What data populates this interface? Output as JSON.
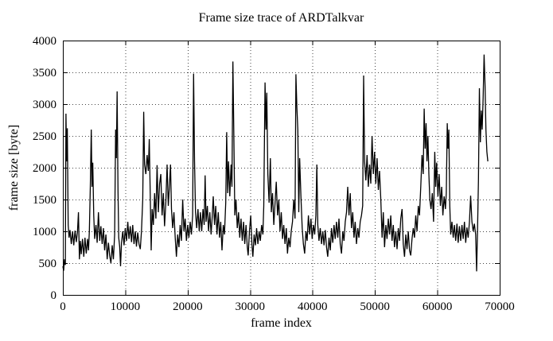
{
  "chart_data": {
    "type": "line",
    "title": "Frame size trace of ARDTalkvar",
    "xlabel": "frame index",
    "ylabel": "frame size [byte]",
    "xlim": [
      0,
      70000
    ],
    "ylim": [
      0,
      4000
    ],
    "xticks": [
      0,
      10000,
      20000,
      30000,
      40000,
      50000,
      60000,
      70000
    ],
    "yticks": [
      0,
      500,
      1000,
      1500,
      2000,
      2500,
      3000,
      3500,
      4000
    ],
    "grid": true,
    "grid_style": "dotted",
    "legend": "none",
    "line_color": "#000000",
    "background": "#ffffff",
    "series": [
      {
        "name": "frame size",
        "points_format": "interleaved [frame_index, frame_size_bytes]",
        "points_xy": [
          0,
          450,
          130,
          380,
          260,
          560,
          390,
          470,
          500,
          2850,
          600,
          2100,
          720,
          2620,
          850,
          1100,
          1000,
          900,
          1150,
          1020,
          1350,
          800,
          1550,
          1000,
          1750,
          780,
          1950,
          1010,
          2150,
          830,
          2350,
          1000,
          2500,
          1300,
          2650,
          560,
          2800,
          850,
          2950,
          640,
          3150,
          880,
          3350,
          600,
          3550,
          900,
          3750,
          650,
          3950,
          880,
          4100,
          700,
          4250,
          1000,
          4400,
          1700,
          4550,
          2600,
          4670,
          1700,
          4800,
          2080,
          4950,
          1250,
          5100,
          880,
          5300,
          1100,
          5500,
          820,
          5700,
          1300,
          5900,
          850,
          6100,
          1080,
          6300,
          800,
          6500,
          1050,
          6700,
          700,
          6900,
          950,
          7100,
          560,
          7300,
          820,
          7500,
          620,
          7700,
          500,
          7900,
          780,
          8100,
          560,
          8300,
          950,
          8450,
          2600,
          8570,
          2150,
          8700,
          3200,
          8830,
          1650,
          8950,
          900,
          9100,
          760,
          9250,
          450,
          9400,
          820,
          9600,
          1000,
          9800,
          780,
          10000,
          1050,
          10200,
          850,
          10400,
          1150,
          10600,
          880,
          10800,
          1080,
          11000,
          830,
          11200,
          1100,
          11400,
          800,
          11600,
          1000,
          11800,
          760,
          12000,
          980,
          12200,
          800,
          12400,
          720,
          12600,
          1000,
          12800,
          1500,
          12950,
          2880,
          13100,
          2050,
          13300,
          1900,
          13500,
          2200,
          13700,
          1950,
          13850,
          2450,
          14000,
          1600,
          14150,
          700,
          14300,
          1350,
          14500,
          1100,
          14700,
          1600,
          14900,
          1200,
          15100,
          2040,
          15300,
          1300,
          15500,
          1750,
          15700,
          1900,
          15900,
          1250,
          16100,
          1600,
          16300,
          1080,
          16500,
          1450,
          16700,
          2050,
          16900,
          1400,
          17100,
          1750,
          17250,
          2050,
          17400,
          1350,
          17600,
          1050,
          17800,
          1300,
          18000,
          900,
          18200,
          600,
          18400,
          950,
          18600,
          750,
          18800,
          1100,
          19000,
          850,
          19200,
          1500,
          19400,
          1000,
          19600,
          1200,
          19800,
          850,
          20000,
          1100,
          20200,
          900,
          20400,
          1150,
          20600,
          950,
          20800,
          1250,
          20950,
          3480,
          21100,
          2100,
          21250,
          1300,
          21450,
          1050,
          21650,
          1350,
          21850,
          1000,
          22050,
          1300,
          22250,
          1000,
          22450,
          1350,
          22650,
          1100,
          22800,
          1880,
          22950,
          1150,
          23150,
          1400,
          23350,
          1000,
          23550,
          1300,
          23750,
          950,
          23950,
          1250,
          24100,
          1550,
          24300,
          1100,
          24500,
          1400,
          24700,
          950,
          24900,
          1300,
          25100,
          900,
          25300,
          1150,
          25500,
          700,
          25700,
          1100,
          25900,
          950,
          26100,
          1450,
          26250,
          2560,
          26400,
          1600,
          26550,
          2100,
          26750,
          1550,
          26950,
          2050,
          27100,
          1700,
          27250,
          3670,
          27400,
          2500,
          27550,
          1250,
          27750,
          1500,
          27950,
          1050,
          28150,
          1300,
          28350,
          900,
          28550,
          1200,
          28750,
          850,
          28950,
          1150,
          29150,
          800,
          29350,
          1100,
          29550,
          750,
          29700,
          620,
          29900,
          1000,
          30100,
          1250,
          30300,
          800,
          30450,
          600,
          30650,
          950,
          30850,
          780,
          31050,
          1050,
          31250,
          800,
          31450,
          1000,
          31650,
          850,
          31850,
          1100,
          32050,
          950,
          32200,
          1400,
          32400,
          3340,
          32550,
          2600,
          32680,
          3180,
          32850,
          1900,
          33050,
          1450,
          33250,
          2150,
          33400,
          1300,
          33600,
          1600,
          33800,
          1100,
          34000,
          1450,
          34200,
          1780,
          34400,
          1250,
          34600,
          1500,
          34800,
          1000,
          35000,
          1300,
          35200,
          880,
          35400,
          1100,
          35600,
          800,
          35800,
          1050,
          36000,
          650,
          36200,
          900,
          36400,
          750,
          36600,
          1000,
          36800,
          1150,
          37000,
          1500,
          37200,
          1200,
          37350,
          3470,
          37500,
          2950,
          37650,
          2600,
          37800,
          1300,
          37950,
          2150,
          38150,
          1550,
          38350,
          1050,
          38550,
          800,
          38750,
          650,
          38950,
          1000,
          39150,
          850,
          39350,
          1250,
          39550,
          950,
          39750,
          1200,
          39950,
          880,
          40150,
          1100,
          40350,
          950,
          40550,
          1250,
          40700,
          2050,
          40850,
          1100,
          41050,
          850,
          41250,
          1050,
          41450,
          800,
          41650,
          1000,
          41850,
          780,
          42050,
          1020,
          42250,
          750,
          42450,
          600,
          42650,
          900,
          42850,
          700,
          43050,
          1050,
          43250,
          820,
          43450,
          1100,
          43650,
          880,
          43850,
          1150,
          44050,
          900,
          44250,
          1200,
          44450,
          800,
          44650,
          650,
          44850,
          1000,
          45050,
          850,
          45250,
          1150,
          45450,
          1300,
          45650,
          1700,
          45850,
          1250,
          46050,
          1600,
          46250,
          1050,
          46450,
          1300,
          46650,
          900,
          46850,
          1150,
          47050,
          800,
          47250,
          1050,
          47450,
          900,
          47650,
          1150,
          47850,
          1250,
          48050,
          1400,
          48200,
          3450,
          48350,
          2100,
          48550,
          1800,
          48750,
          2200,
          48950,
          1700,
          49150,
          2050,
          49350,
          1750,
          49550,
          2500,
          49750,
          1900,
          49950,
          2250,
          50150,
          1750,
          50350,
          2150,
          50550,
          1650,
          50750,
          1950,
          50950,
          1500,
          51150,
          900,
          51350,
          1300,
          51550,
          750,
          51750,
          1100,
          51950,
          880,
          52150,
          1200,
          52350,
          950,
          52550,
          1250,
          52750,
          850,
          52950,
          1100,
          53150,
          750,
          53350,
          1000,
          53550,
          720,
          53750,
          1050,
          53950,
          850,
          54150,
          1200,
          54350,
          1350,
          54550,
          800,
          54750,
          600,
          54950,
          950,
          55150,
          720,
          55350,
          1000,
          55550,
          700,
          55750,
          620,
          55950,
          880,
          56150,
          1050,
          56350,
          900,
          56550,
          1250,
          56750,
          1000,
          56950,
          1400,
          57150,
          1250,
          57350,
          1700,
          57550,
          2200,
          57750,
          1900,
          57900,
          2930,
          58050,
          2300,
          58200,
          2700,
          58350,
          2100,
          58500,
          2500,
          58650,
          1900,
          58800,
          1500,
          59000,
          1350,
          59200,
          1600,
          59400,
          1150,
          59600,
          2250,
          59750,
          1700,
          59900,
          2080,
          60100,
          1550,
          60300,
          1900,
          60500,
          1400,
          60700,
          1700,
          60900,
          1250,
          61100,
          1550,
          61300,
          1350,
          61450,
          1600,
          61600,
          2700,
          61720,
          2300,
          61850,
          2600,
          62000,
          1400,
          62150,
          950,
          62350,
          1150,
          62550,
          900,
          62750,
          1100,
          62950,
          850,
          63150,
          1120,
          63350,
          820,
          63550,
          1080,
          63750,
          850,
          63950,
          1100,
          64150,
          880,
          64350,
          1150,
          64550,
          820,
          64750,
          1060,
          64950,
          900,
          65150,
          1150,
          65350,
          1560,
          65550,
          1150,
          65750,
          1000,
          65950,
          1120,
          66150,
          950,
          66300,
          370,
          66450,
          1050,
          66600,
          1800,
          66750,
          3250,
          66900,
          2400,
          67050,
          2900,
          67200,
          2600,
          67350,
          3100,
          67500,
          3780,
          67650,
          3300,
          67800,
          2600,
          67950,
          2250,
          68100,
          2100
        ]
      }
    ]
  }
}
